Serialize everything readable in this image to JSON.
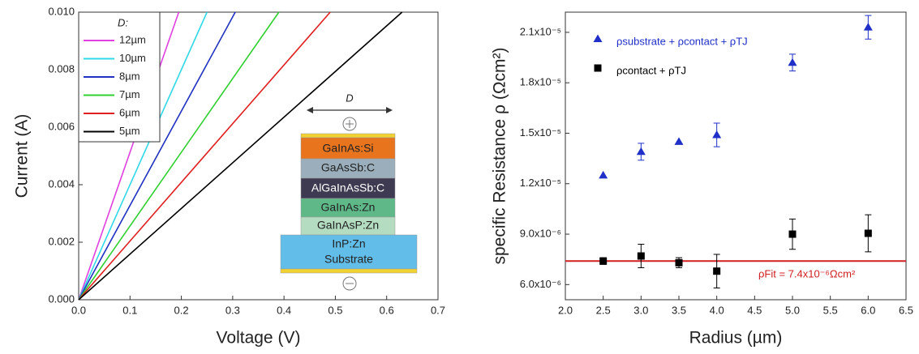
{
  "chart_data": [
    {
      "type": "line",
      "x_label": "Voltage (V)",
      "y_label": "Current (A)",
      "xlim": [
        0,
        0.7
      ],
      "ylim": [
        0,
        0.01
      ],
      "xticks": [
        {
          "value": 0,
          "label": "0.0"
        },
        0.1,
        0.2,
        0.3,
        0.4,
        0.5,
        0.6,
        0.7
      ],
      "yticks": [
        {
          "value": 0,
          "label": "0.000"
        },
        0.002,
        0.004,
        0.006,
        0.008,
        {
          "value": 0.01,
          "label": "0.010"
        }
      ],
      "legend_title": "D:",
      "legend": "upper left",
      "series": [
        {
          "name": "12µm",
          "color": "#e040e0",
          "x": [
            0,
            0.195
          ],
          "values": [
            0,
            0.01
          ]
        },
        {
          "name": "10µm",
          "color": "#30d8e8",
          "x": [
            0,
            0.25
          ],
          "values": [
            0,
            0.01
          ]
        },
        {
          "name": "8µm",
          "color": "#2030c0",
          "x": [
            0,
            0.305
          ],
          "values": [
            0,
            0.01
          ]
        },
        {
          "name": "7µm",
          "color": "#30d030",
          "x": [
            0,
            0.39
          ],
          "values": [
            0,
            0.01
          ]
        },
        {
          "name": "6µm",
          "color": "#e02020",
          "x": [
            0,
            0.49
          ],
          "values": [
            0,
            0.01
          ]
        },
        {
          "name": "5µm",
          "color": "#000000",
          "x": [
            0,
            0.63
          ],
          "values": [
            0,
            0.01
          ]
        }
      ],
      "inset": {
        "width_label": "D",
        "layers": [
          "GaInAs:Si",
          "GaAsSb:C",
          "AlGaInAsSb:C",
          "GaInAs:Zn",
          "GaInAsP:Zn"
        ],
        "substrate": [
          "InP:Zn",
          "Substrate"
        ]
      }
    },
    {
      "type": "scatter",
      "x_label": "Radius (µm)",
      "y_label": "specific Resistance ρ (Ωcm²)",
      "xlim": [
        2.0,
        6.5
      ],
      "ylim": [
        5.1e-06,
        2.22e-05
      ],
      "xticks": [
        {
          "value": 2,
          "label": "2.0"
        },
        2.5,
        {
          "value": 3,
          "label": "3.0"
        },
        3.5,
        {
          "value": 4,
          "label": "4.0"
        },
        4.5,
        {
          "value": 5,
          "label": "5.0"
        },
        5.5,
        {
          "value": 6,
          "label": "6.0"
        },
        6.5
      ],
      "yticks": [
        {
          "value": 6e-06,
          "label": "6.0x10⁻⁶"
        },
        {
          "value": 9e-06,
          "label": "9.0x10⁻⁶"
        },
        {
          "value": 1.2e-05,
          "label": "1.2x10⁻⁵"
        },
        {
          "value": 1.5e-05,
          "label": "1.5x10⁻⁵"
        },
        {
          "value": 1.8e-05,
          "label": "1.8x10⁻⁵"
        },
        {
          "value": 2.1e-05,
          "label": "2.1x10⁻⁵"
        }
      ],
      "x": [
        2.5,
        3.0,
        3.5,
        4.0,
        5.0,
        6.0
      ],
      "series": [
        {
          "name": "ρsubstrate + ρcontact + ρTJ",
          "color": "#1f2fc8",
          "marker": "triangle",
          "values": [
            1.25e-05,
            1.39e-05,
            1.45e-05,
            1.49e-05,
            1.92e-05,
            2.13e-05
          ],
          "errors": [
            0,
            5e-07,
            0,
            7e-07,
            5e-07,
            7e-07
          ]
        },
        {
          "name": "ρcontact + ρTJ",
          "color": "#000000",
          "marker": "square",
          "values": [
            7.4e-06,
            7.7e-06,
            7.3e-06,
            6.8e-06,
            9e-06,
            9.05e-06
          ],
          "errors": [
            2e-07,
            7e-07,
            3e-07,
            1e-06,
            9e-07,
            1.1e-06
          ]
        }
      ],
      "fit_line": {
        "value": 7.4e-06,
        "color": "#d02020",
        "label": "ρFit = 7.4x10⁻⁶Ωcm²"
      }
    }
  ]
}
